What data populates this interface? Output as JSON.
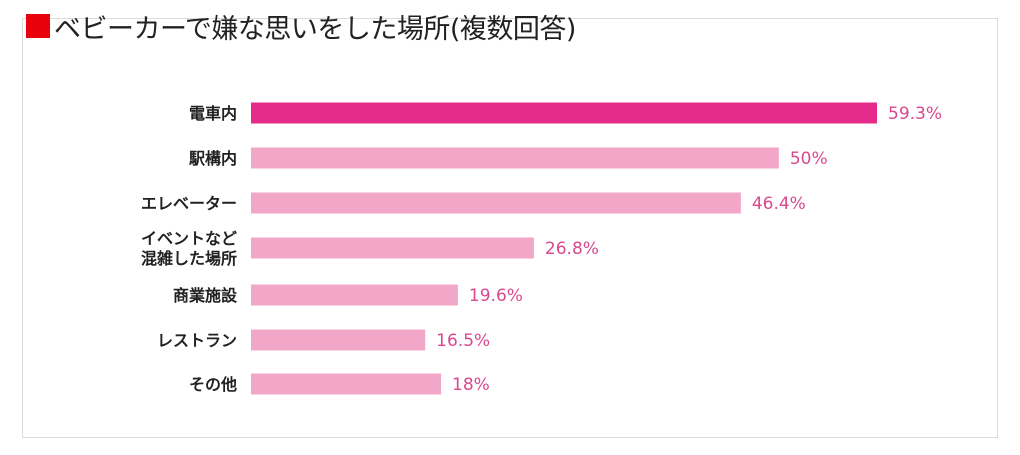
{
  "title": "ベビーカーで嫌な思いをした場所(複数回答)",
  "colors": {
    "title_marker": "#e8000b",
    "highlight_bar": "#e62c8a",
    "bar": "#f2a7c9",
    "value_text": "#d9488f"
  },
  "chart_data": {
    "type": "bar",
    "orientation": "horizontal",
    "title": "ベビーカーで嫌な思いをした場所(複数回答)",
    "categories": [
      [
        "電車内"
      ],
      [
        "駅構内"
      ],
      [
        "エレベーター"
      ],
      [
        "イベントなど",
        "混雑した場所"
      ],
      [
        "商業施設"
      ],
      [
        "レストラン"
      ],
      [
        "その他"
      ]
    ],
    "values": [
      59.3,
      50,
      46.4,
      26.8,
      19.6,
      16.5,
      18
    ],
    "value_labels": [
      "59.3%",
      "50%",
      "46.4%",
      "26.8%",
      "19.6%",
      "16.5%",
      "18%"
    ],
    "unit": "%",
    "highlight_index": 0,
    "xlim": [
      0,
      59.3
    ],
    "grid": false,
    "legend": "none"
  }
}
